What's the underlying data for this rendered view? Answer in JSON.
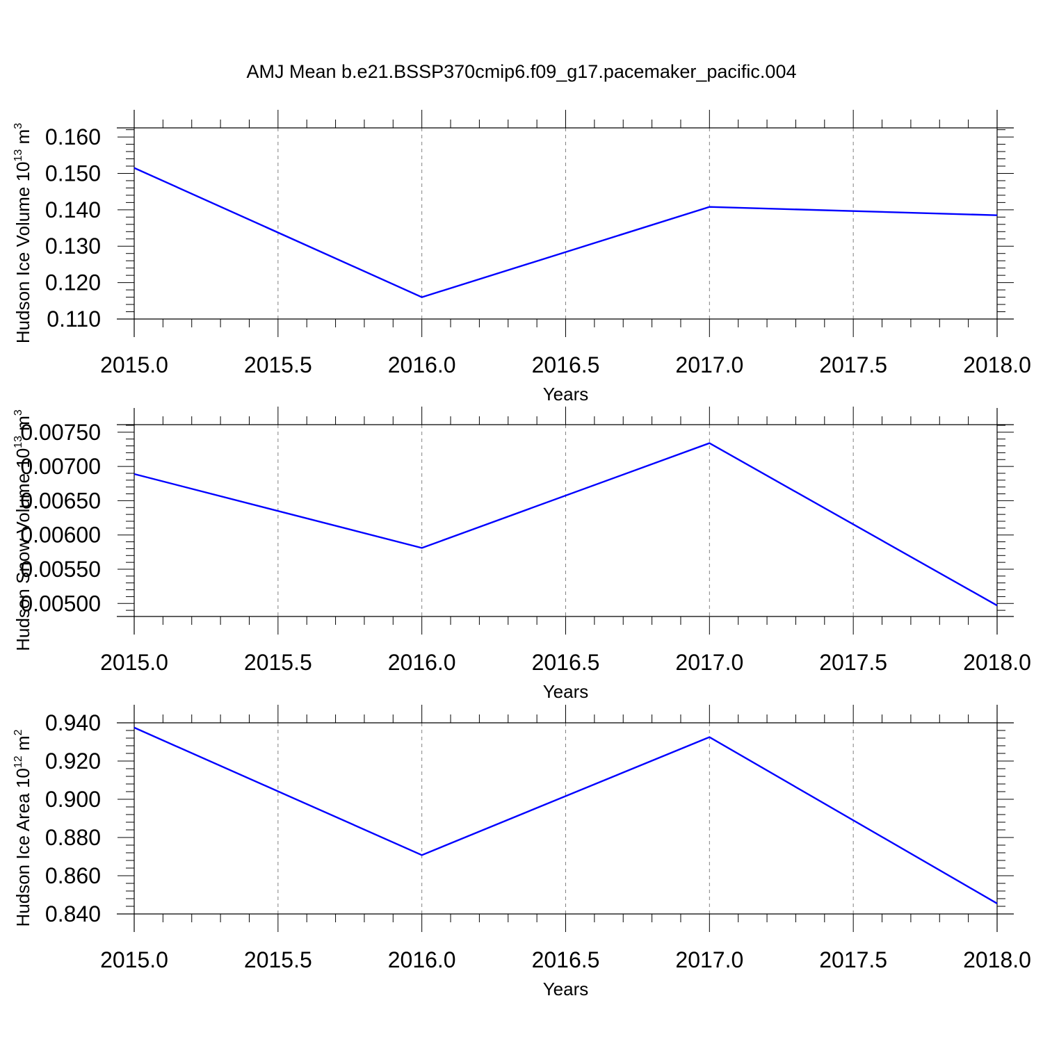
{
  "title": "AMJ Mean b.e21.BSSP370cmip6.f09_g17.pacemaker_pacific.004",
  "colors": {
    "series": "#0000ff",
    "grid": "#808080",
    "axis": "#000000"
  },
  "chart_data": [
    {
      "type": "line",
      "title": "AMJ Mean b.e21.BSSP370cmip6.f09_g17.pacemaker_pacific.004",
      "xlabel": "Years",
      "ylabel": "Hudson Ice Volume 10",
      "ylabel_exp": "13",
      "ylabel_unit": " m",
      "ylabel_unit_exp": "3",
      "x": [
        2015.0,
        2016.0,
        2017.0,
        2018.0
      ],
      "values": [
        0.1515,
        0.116,
        0.1408,
        0.1385
      ],
      "xlim": [
        2015.0,
        2018.0
      ],
      "ylim": [
        0.11,
        0.1625
      ],
      "xticks": [
        "2015.0",
        "2015.5",
        "2016.0",
        "2016.5",
        "2017.0",
        "2017.5",
        "2018.0"
      ],
      "yticks": [
        "0.110",
        "0.120",
        "0.130",
        "0.140",
        "0.150",
        "0.160"
      ],
      "ytick_values": [
        0.11,
        0.12,
        0.13,
        0.14,
        0.15,
        0.16
      ],
      "grid": "vertical dashed"
    },
    {
      "type": "line",
      "xlabel": "Years",
      "ylabel": "Hudson Snow Volume 10",
      "ylabel_exp": "13",
      "ylabel_unit": " m",
      "ylabel_unit_exp": "3",
      "x": [
        2015.0,
        2016.0,
        2017.0,
        2018.0
      ],
      "values": [
        0.00689,
        0.00581,
        0.00734,
        0.00497
      ],
      "xlim": [
        2015.0,
        2018.0
      ],
      "ylim": [
        0.00481,
        0.00761
      ],
      "xticks": [
        "2015.0",
        "2015.5",
        "2016.0",
        "2016.5",
        "2017.0",
        "2017.5",
        "2018.0"
      ],
      "yticks": [
        "0.00500",
        "0.00550",
        "0.00600",
        "0.00650",
        "0.00700",
        "0.00750"
      ],
      "ytick_values": [
        0.005,
        0.0055,
        0.006,
        0.0065,
        0.007,
        0.0075
      ],
      "grid": "vertical dashed"
    },
    {
      "type": "line",
      "xlabel": "Years",
      "ylabel": "Hudson Ice Area 10",
      "ylabel_exp": "12",
      "ylabel_unit": " m",
      "ylabel_unit_exp": "2",
      "x": [
        2015.0,
        2016.0,
        2017.0,
        2018.0
      ],
      "values": [
        0.9375,
        0.8708,
        0.9325,
        0.8455
      ],
      "xlim": [
        2015.0,
        2018.0
      ],
      "ylim": [
        0.84,
        0.94
      ],
      "xticks": [
        "2015.0",
        "2015.5",
        "2016.0",
        "2016.5",
        "2017.0",
        "2017.5",
        "2018.0"
      ],
      "yticks": [
        "0.840",
        "0.860",
        "0.880",
        "0.900",
        "0.920",
        "0.940"
      ],
      "ytick_values": [
        0.84,
        0.86,
        0.88,
        0.9,
        0.92,
        0.94
      ],
      "grid": "vertical dashed"
    }
  ]
}
